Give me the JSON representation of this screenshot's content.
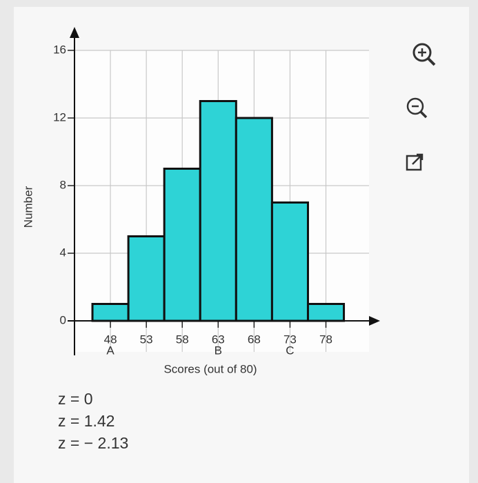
{
  "chart_data": {
    "type": "histogram",
    "y_label": "Number",
    "x_label": "Scores (out of 80)",
    "bins": [
      45.5,
      50.5,
      55.5,
      60.5,
      65.5,
      70.5,
      75.5,
      80.5
    ],
    "values": [
      1,
      5,
      9,
      13,
      12,
      7,
      1
    ],
    "color": "#2ed3d6",
    "xlim": [
      43,
      84
    ],
    "xticks": [
      48,
      53,
      58,
      63,
      68,
      73,
      78
    ],
    "ylim": [
      0,
      16
    ],
    "yticks": [
      0,
      4,
      8,
      12,
      16
    ],
    "grid": true,
    "markers": [
      {
        "x": 48,
        "label": "A"
      },
      {
        "x": 63,
        "label": "B"
      },
      {
        "x": 73,
        "label": "C"
      }
    ],
    "notes": [
      "z = 0",
      "z = 1.42",
      "z = − 2.13"
    ]
  }
}
